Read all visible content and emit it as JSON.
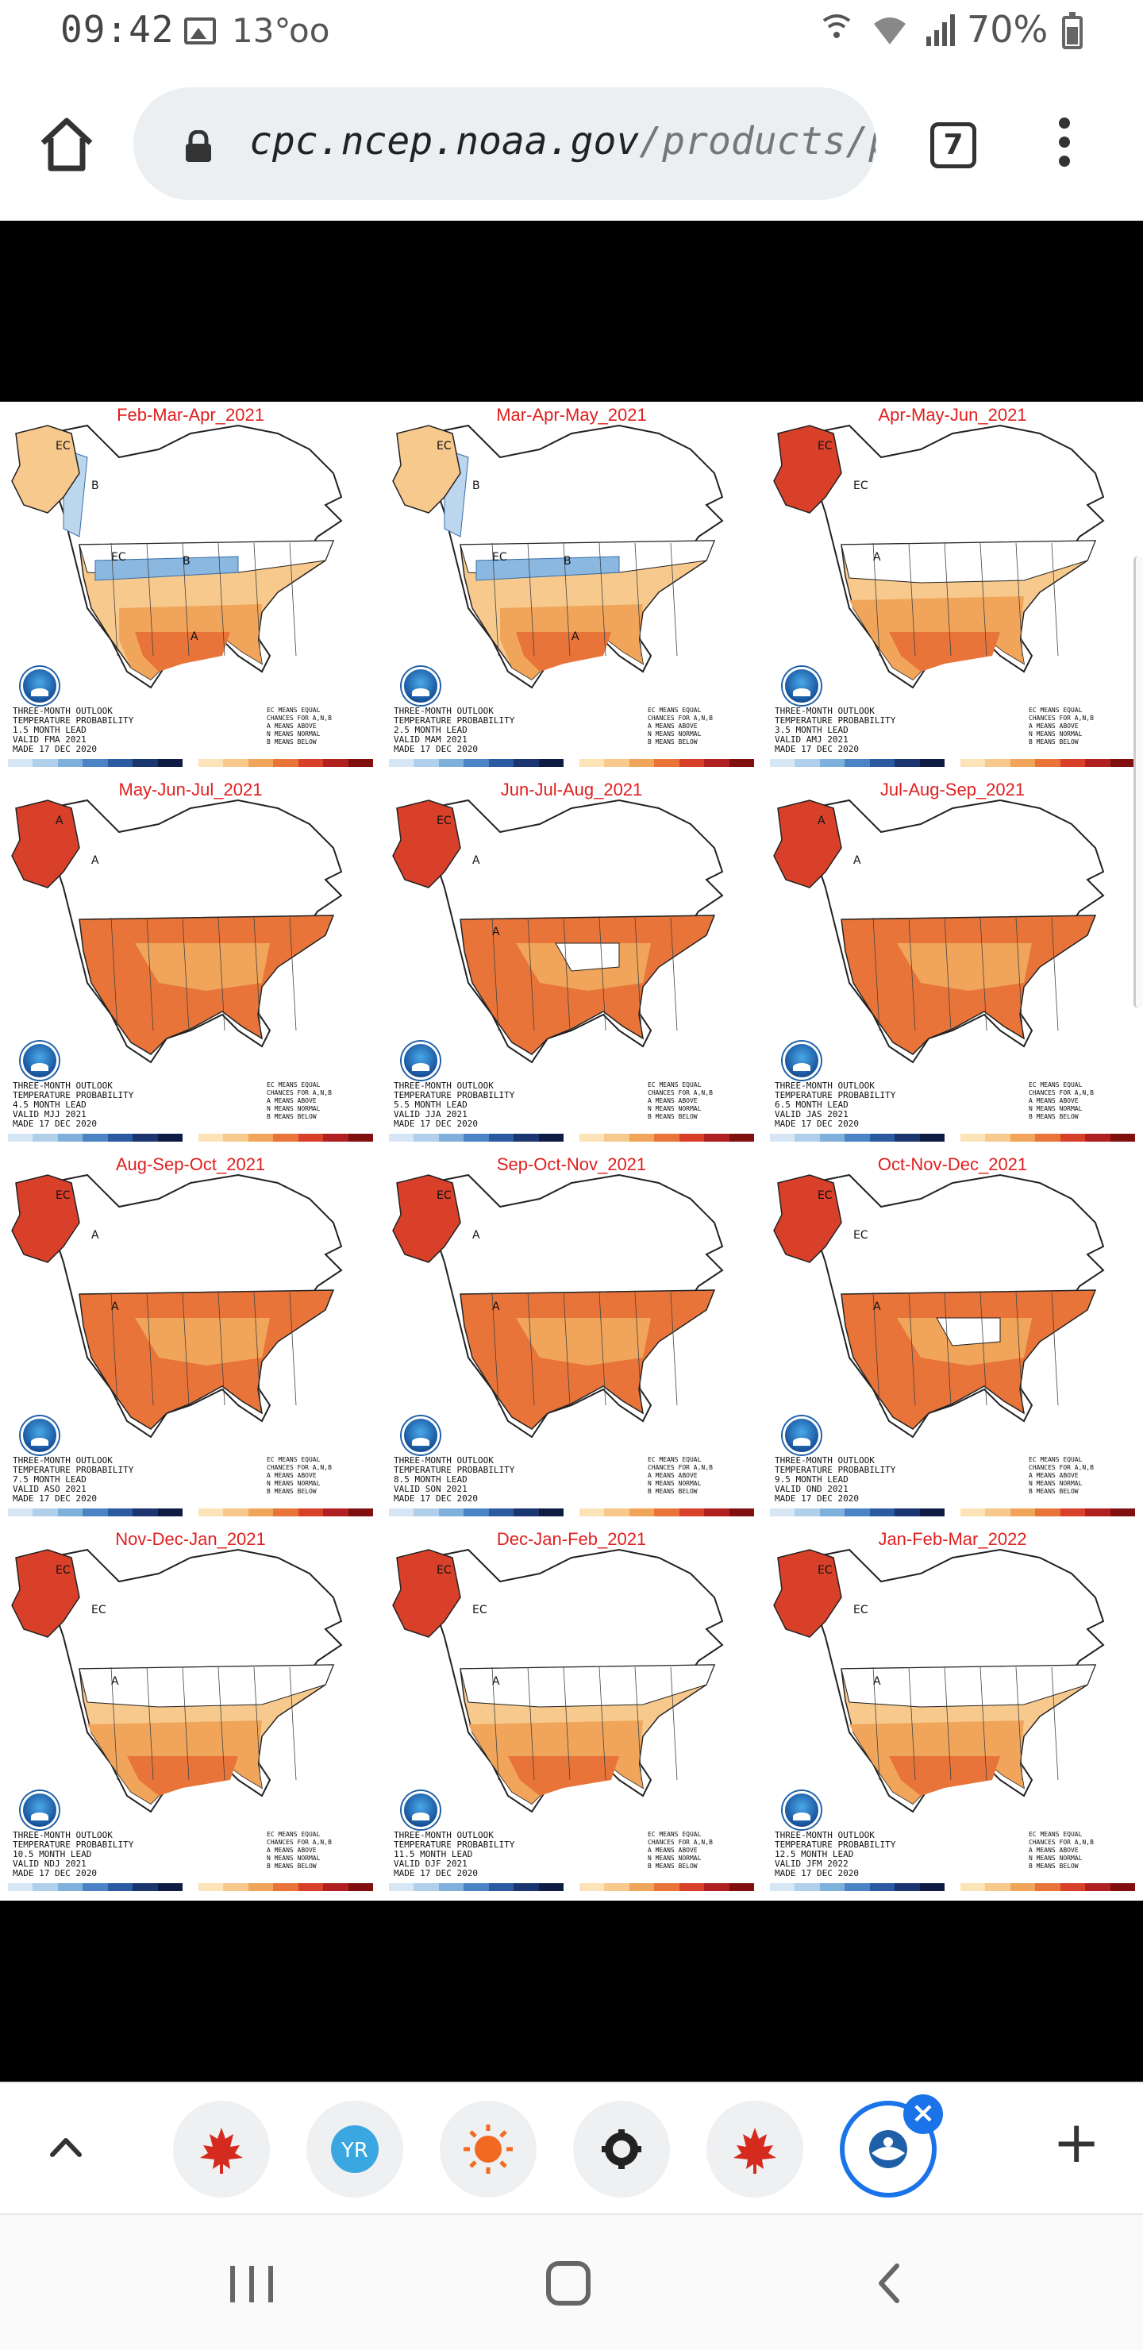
{
  "status_bar": {
    "time": "09:42",
    "temperature": "13°",
    "voicemail": "oo",
    "battery": "70%"
  },
  "browser": {
    "url_host": "cpc.ncep.noaa.gov",
    "url_path": "/products/pred",
    "tab_count": "7"
  },
  "maps": [
    {
      "title": "Feb-Mar-Apr_2021",
      "caption": "THREE-MONTH OUTLOOK\nTEMPERATURE PROBABILITY\n1.5 MONTH LEAD\nVALID FMA 2021\nMADE 17 DEC 2020",
      "labels": [
        "EC",
        "B",
        "EC",
        "B",
        "A"
      ],
      "style": "cold-nw"
    },
    {
      "title": "Mar-Apr-May_2021",
      "caption": "THREE-MONTH OUTLOOK\nTEMPERATURE PROBABILITY\n2.5 MONTH LEAD\nVALID MAM 2021\nMADE 17 DEC 2020",
      "labels": [
        "EC",
        "B",
        "EC",
        "B",
        "A"
      ],
      "style": "cold-nw"
    },
    {
      "title": "Apr-May-Jun_2021",
      "caption": "THREE-MONTH OUTLOOK\nTEMPERATURE PROBABILITY\n3.5 MONTH LEAD\nVALID AMJ 2021\nMADE 17 DEC 2020",
      "labels": [
        "EC",
        "EC",
        "A"
      ],
      "style": "warm-south"
    },
    {
      "title": "May-Jun-Jul_2021",
      "caption": "THREE-MONTH OUTLOOK\nTEMPERATURE PROBABILITY\n4.5 MONTH LEAD\nVALID MJJ 2021\nMADE 17 DEC 2020",
      "labels": [
        "A",
        "A"
      ],
      "style": "warm-full"
    },
    {
      "title": "Jun-Jul-Aug_2021",
      "caption": "THREE-MONTH OUTLOOK\nTEMPERATURE PROBABILITY\n5.5 MONTH LEAD\nVALID JJA 2021\nMADE 17 DEC 2020",
      "labels": [
        "EC",
        "A",
        "A"
      ],
      "style": "warm-full-ec"
    },
    {
      "title": "Jul-Aug-Sep_2021",
      "caption": "THREE-MONTH OUTLOOK\nTEMPERATURE PROBABILITY\n6.5 MONTH LEAD\nVALID JAS 2021\nMADE 17 DEC 2020",
      "labels": [
        "A",
        "A"
      ],
      "style": "warm-full"
    },
    {
      "title": "Aug-Sep-Oct_2021",
      "caption": "THREE-MONTH OUTLOOK\nTEMPERATURE PROBABILITY\n7.5 MONTH LEAD\nVALID ASO 2021\nMADE 17 DEC 2020",
      "labels": [
        "EC",
        "A",
        "A"
      ],
      "style": "warm-full"
    },
    {
      "title": "Sep-Oct-Nov_2021",
      "caption": "THREE-MONTH OUTLOOK\nTEMPERATURE PROBABILITY\n8.5 MONTH LEAD\nVALID SON 2021\nMADE 17 DEC 2020",
      "labels": [
        "EC",
        "A",
        "A"
      ],
      "style": "warm-full"
    },
    {
      "title": "Oct-Nov-Dec_2021",
      "caption": "THREE-MONTH OUTLOOK\nTEMPERATURE PROBABILITY\n9.5 MONTH LEAD\nVALID OND 2021\nMADE 17 DEC 2020",
      "labels": [
        "EC",
        "EC",
        "A"
      ],
      "style": "warm-full-ec"
    },
    {
      "title": "Nov-Dec-Jan_2021",
      "caption": "THREE-MONTH OUTLOOK\nTEMPERATURE PROBABILITY\n10.5 MONTH LEAD\nVALID NDJ 2021\nMADE 17 DEC 2020",
      "labels": [
        "EC",
        "EC",
        "A"
      ],
      "style": "warm-south"
    },
    {
      "title": "Dec-Jan-Feb_2021",
      "caption": "THREE-MONTH OUTLOOK\nTEMPERATURE PROBABILITY\n11.5 MONTH LEAD\nVALID DJF 2021\nMADE 17 DEC 2020",
      "labels": [
        "EC",
        "EC",
        "A"
      ],
      "style": "warm-south"
    },
    {
      "title": "Jan-Feb-Mar_2022",
      "caption": "THREE-MONTH OUTLOOK\nTEMPERATURE PROBABILITY\n12.5 MONTH LEAD\nVALID JFM 2022\nMADE 17 DEC 2020",
      "labels": [
        "EC",
        "EC",
        "A"
      ],
      "style": "warm-south"
    }
  ],
  "map_legend": "EC MEANS EQUAL\nCHANCES FOR A,N,B\nA MEANS ABOVE\nN MEANS NORMAL\nB MEANS BELOW",
  "colors": {
    "above_light": "#f7c98c",
    "above_mid": "#f0a55a",
    "above_strong": "#e8743a",
    "above_max": "#d8402a",
    "below_light": "#bcd6ee",
    "below_mid": "#8ab8e0",
    "accent": "#1a73e8"
  },
  "tab_strip": {
    "tabs": [
      "maple-leaf-icon",
      "yr-logo-icon",
      "sun-icon",
      "gear-icon",
      "maple-leaf-icon",
      "noaa-logo-icon"
    ],
    "add_label": "+"
  }
}
